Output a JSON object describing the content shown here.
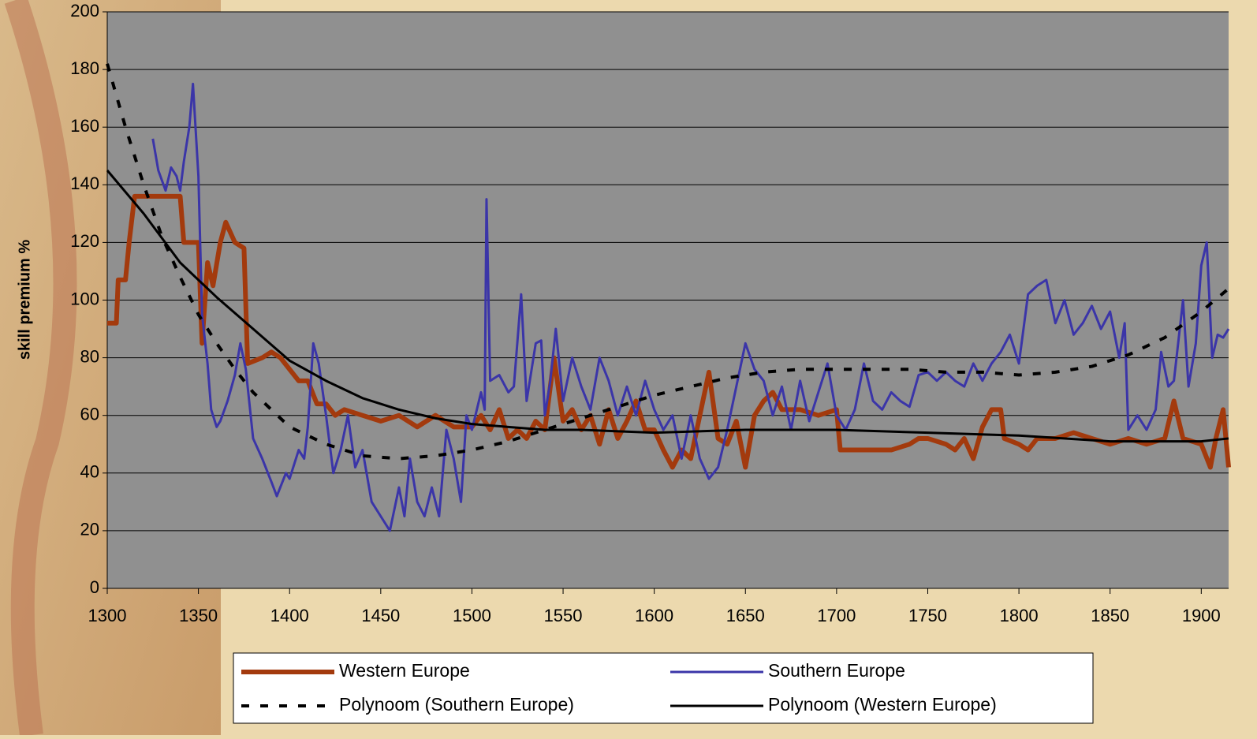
{
  "chart_data": {
    "type": "line",
    "ylabel": "skill premium %",
    "xlim": [
      1300,
      1915
    ],
    "xticks": [
      1300,
      1350,
      1400,
      1450,
      1500,
      1550,
      1600,
      1650,
      1700,
      1750,
      1800,
      1850,
      1900
    ],
    "ylim": [
      0,
      200
    ],
    "yticks": [
      0,
      20,
      40,
      60,
      80,
      100,
      120,
      140,
      160,
      180,
      200
    ],
    "grid": true,
    "series": [
      {
        "name": "Western Europe",
        "color": "#a33a0d",
        "style": "solid",
        "width": 6,
        "x": [
          1300,
          1305,
          1306,
          1310,
          1312,
          1315,
          1320,
          1340,
          1342,
          1345,
          1350,
          1352,
          1355,
          1358,
          1362,
          1365,
          1370,
          1375,
          1377,
          1385,
          1390,
          1395,
          1400,
          1405,
          1410,
          1415,
          1420,
          1425,
          1430,
          1440,
          1450,
          1460,
          1470,
          1480,
          1490,
          1500,
          1505,
          1510,
          1515,
          1520,
          1525,
          1530,
          1535,
          1540,
          1545,
          1550,
          1555,
          1560,
          1565,
          1570,
          1575,
          1580,
          1585,
          1590,
          1595,
          1600,
          1605,
          1610,
          1615,
          1620,
          1625,
          1630,
          1635,
          1640,
          1645,
          1650,
          1655,
          1660,
          1665,
          1670,
          1680,
          1690,
          1700,
          1702,
          1710,
          1720,
          1730,
          1740,
          1745,
          1750,
          1760,
          1765,
          1770,
          1775,
          1780,
          1785,
          1790,
          1792,
          1800,
          1805,
          1810,
          1820,
          1830,
          1840,
          1850,
          1860,
          1870,
          1880,
          1885,
          1890,
          1900,
          1905,
          1908,
          1912,
          1915
        ],
        "values": [
          92,
          92,
          107,
          107,
          120,
          136,
          136,
          136,
          120,
          120,
          120,
          85,
          113,
          105,
          120,
          127,
          120,
          118,
          78,
          80,
          82,
          80,
          76,
          72,
          72,
          64,
          64,
          60,
          62,
          60,
          58,
          60,
          56,
          60,
          56,
          56,
          60,
          55,
          62,
          52,
          55,
          52,
          58,
          55,
          80,
          58,
          62,
          55,
          60,
          50,
          62,
          52,
          58,
          65,
          55,
          55,
          48,
          42,
          48,
          45,
          60,
          75,
          52,
          50,
          58,
          42,
          60,
          65,
          68,
          62,
          62,
          60,
          62,
          48,
          48,
          48,
          48,
          50,
          52,
          52,
          50,
          48,
          52,
          45,
          56,
          62,
          62,
          52,
          50,
          48,
          52,
          52,
          54,
          52,
          50,
          52,
          50,
          52,
          65,
          52,
          50,
          42,
          52,
          62,
          42
        ]
      },
      {
        "name": "Southern Europe",
        "color": "#3b35a8",
        "style": "solid",
        "width": 3,
        "x": [
          1325,
          1328,
          1332,
          1335,
          1338,
          1340,
          1342,
          1345,
          1347,
          1350,
          1352,
          1355,
          1357,
          1360,
          1362,
          1366,
          1370,
          1373,
          1376,
          1380,
          1385,
          1390,
          1393,
          1398,
          1400,
          1405,
          1408,
          1410,
          1413,
          1416,
          1420,
          1424,
          1428,
          1432,
          1436,
          1440,
          1445,
          1450,
          1455,
          1460,
          1463,
          1466,
          1470,
          1474,
          1478,
          1482,
          1486,
          1490,
          1494,
          1497,
          1500,
          1505,
          1507,
          1508,
          1510,
          1515,
          1520,
          1523,
          1527,
          1530,
          1535,
          1538,
          1540,
          1543,
          1546,
          1550,
          1555,
          1560,
          1565,
          1570,
          1575,
          1580,
          1585,
          1590,
          1595,
          1600,
          1605,
          1610,
          1615,
          1620,
          1625,
          1630,
          1635,
          1640,
          1645,
          1650,
          1655,
          1660,
          1665,
          1670,
          1675,
          1680,
          1685,
          1690,
          1695,
          1700,
          1705,
          1710,
          1715,
          1720,
          1725,
          1730,
          1735,
          1740,
          1745,
          1750,
          1755,
          1760,
          1765,
          1770,
          1775,
          1780,
          1785,
          1790,
          1795,
          1800,
          1805,
          1810,
          1815,
          1820,
          1825,
          1830,
          1835,
          1840,
          1845,
          1850,
          1855,
          1858,
          1860,
          1865,
          1870,
          1875,
          1878,
          1882,
          1885,
          1890,
          1893,
          1897,
          1900,
          1903,
          1906,
          1909,
          1912,
          1915
        ],
        "values": [
          156,
          145,
          138,
          146,
          143,
          138,
          148,
          160,
          175,
          143,
          95,
          78,
          62,
          56,
          58,
          65,
          74,
          85,
          76,
          52,
          45,
          37,
          32,
          40,
          38,
          48,
          45,
          56,
          85,
          78,
          60,
          40,
          48,
          60,
          42,
          48,
          30,
          25,
          20,
          35,
          25,
          45,
          30,
          25,
          35,
          25,
          55,
          45,
          30,
          60,
          55,
          68,
          62,
          135,
          72,
          74,
          68,
          70,
          102,
          65,
          85,
          86,
          60,
          72,
          90,
          65,
          80,
          70,
          62,
          80,
          72,
          60,
          70,
          60,
          72,
          62,
          55,
          60,
          45,
          60,
          45,
          38,
          42,
          55,
          70,
          85,
          76,
          72,
          60,
          70,
          55,
          72,
          58,
          68,
          78,
          60,
          55,
          62,
          78,
          65,
          62,
          68,
          65,
          63,
          74,
          75,
          72,
          75,
          72,
          70,
          78,
          72,
          78,
          82,
          88,
          78,
          102,
          105,
          107,
          92,
          100,
          88,
          92,
          98,
          90,
          96,
          80,
          92,
          55,
          60,
          55,
          62,
          82,
          70,
          72,
          100,
          70,
          85,
          112,
          120,
          80,
          88,
          87,
          90
        ]
      },
      {
        "name": "Polynoom (Southern Europe)",
        "color": "#000000",
        "style": "dashed",
        "width": 4,
        "x": [
          1300,
          1310,
          1320,
          1330,
          1340,
          1350,
          1360,
          1370,
          1380,
          1390,
          1400,
          1420,
          1440,
          1460,
          1480,
          1500,
          1520,
          1540,
          1560,
          1580,
          1600,
          1620,
          1640,
          1660,
          1680,
          1700,
          1720,
          1740,
          1760,
          1780,
          1800,
          1820,
          1840,
          1860,
          1880,
          1900,
          1915
        ],
        "values": [
          182,
          160,
          140,
          122,
          108,
          95,
          85,
          76,
          68,
          62,
          56,
          50,
          46,
          45,
          46,
          48,
          51,
          55,
          59,
          63,
          67,
          70,
          73,
          75,
          76,
          76,
          76,
          76,
          75,
          75,
          74,
          75,
          77,
          81,
          87,
          96,
          104
        ]
      },
      {
        "name": "Polynoom (Western Europe)",
        "color": "#000000",
        "style": "solid",
        "width": 3,
        "x": [
          1300,
          1320,
          1340,
          1360,
          1380,
          1400,
          1420,
          1440,
          1460,
          1480,
          1500,
          1520,
          1540,
          1560,
          1600,
          1650,
          1700,
          1750,
          1800,
          1850,
          1900,
          1915
        ],
        "values": [
          145,
          130,
          113,
          101,
          90,
          79,
          72,
          66,
          62,
          59,
          57,
          56,
          55,
          55,
          54,
          55,
          55,
          54,
          53,
          51,
          51,
          52
        ]
      }
    ]
  }
}
